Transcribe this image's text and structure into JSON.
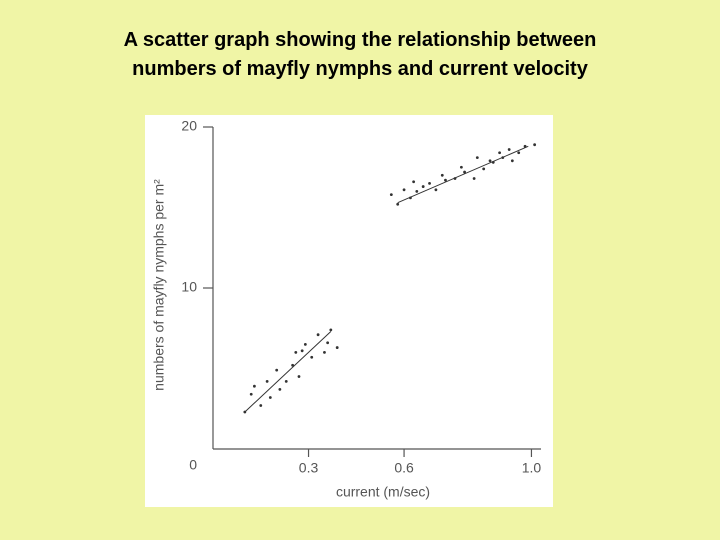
{
  "chart_data": {
    "type": "scatter",
    "title": [
      "A scatter graph showing the relationship between",
      "numbers of mayfly nymphs and current velocity"
    ],
    "x_label": "current (m/sec)",
    "y_label": "numbers of mayfly nymphs per m²",
    "x": [
      0.1,
      0.12,
      0.13,
      0.15,
      0.17,
      0.18,
      0.2,
      0.21,
      0.23,
      0.25,
      0.26,
      0.27,
      0.28,
      0.29,
      0.31,
      0.33,
      0.35,
      0.36,
      0.37,
      0.39,
      0.56,
      0.58,
      0.6,
      0.62,
      0.63,
      0.64,
      0.66,
      0.68,
      0.7,
      0.72,
      0.73,
      0.76,
      0.78,
      0.79,
      0.82,
      0.83,
      0.85,
      0.87,
      0.88,
      0.9,
      0.91,
      0.93,
      0.94,
      0.96,
      0.98,
      1.01
    ],
    "y": [
      2.3,
      3.4,
      3.9,
      2.7,
      4.2,
      3.2,
      4.9,
      3.7,
      4.2,
      5.2,
      6.0,
      4.5,
      6.1,
      6.5,
      5.7,
      7.1,
      6.0,
      6.6,
      7.4,
      6.3,
      15.8,
      15.2,
      16.1,
      15.6,
      16.6,
      16.0,
      16.3,
      16.5,
      16.1,
      17.0,
      16.7,
      16.8,
      17.5,
      17.2,
      16.8,
      18.1,
      17.4,
      17.9,
      17.8,
      18.4,
      18.1,
      18.6,
      17.9,
      18.4,
      18.8,
      18.9
    ],
    "trend_lines": [
      {
        "x": [
          0.1,
          0.37
        ],
        "y": [
          2.3,
          7.3
        ]
      },
      {
        "x": [
          0.58,
          0.99
        ],
        "y": [
          15.3,
          18.8
        ]
      }
    ],
    "color": "#333333",
    "xlim": [
      0,
      1.03
    ],
    "ylim": [
      0,
      20
    ],
    "xticks": [
      0.3,
      0.6,
      {
        "value": 1,
        "label": "1.0"
      }
    ],
    "yticks": [
      0,
      10,
      20
    ]
  }
}
